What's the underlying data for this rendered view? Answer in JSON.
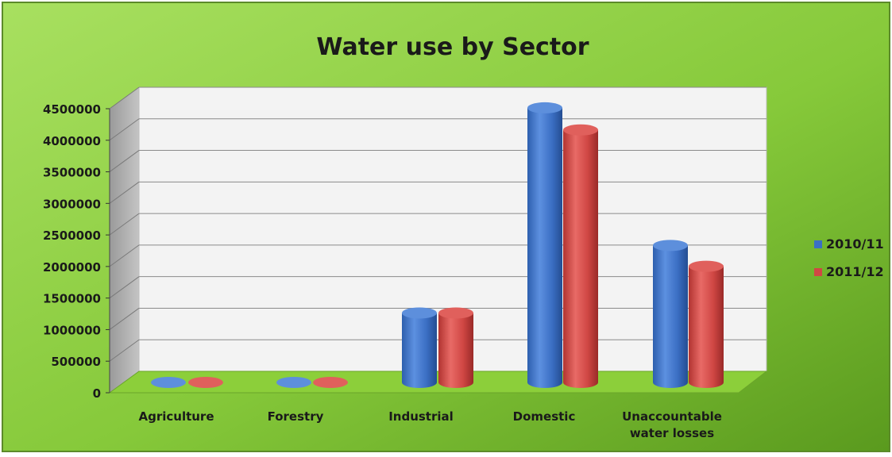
{
  "chart_data": {
    "type": "bar",
    "title": "Water use by Sector",
    "categories": [
      "Agriculture",
      "Forestry",
      "Industrial",
      "Domestic",
      "Unaccountable water losses"
    ],
    "category_lines": [
      [
        "Agriculture"
      ],
      [
        "Forestry"
      ],
      [
        "Industrial"
      ],
      [
        "Domestic"
      ],
      [
        "Unaccountable",
        "water losses"
      ]
    ],
    "series": [
      {
        "name": "2010/11",
        "values": [
          0,
          0,
          1100000,
          4350000,
          2170000
        ]
      },
      {
        "name": "2011/12",
        "values": [
          0,
          0,
          1100000,
          4000000,
          1840000
        ]
      }
    ],
    "y_ticks": [
      "0",
      "500000",
      "1000000",
      "1500000",
      "2000000",
      "2500000",
      "3000000",
      "3500000",
      "4000000",
      "4500000"
    ],
    "ylim": [
      0,
      4500000
    ],
    "grid": true,
    "legend_position": "right",
    "colors": {
      "series_1": "#3b6fc4",
      "series_2": "#d04744",
      "background_light": "#a8e060",
      "background_dark": "#5ea020",
      "wall": "#f3f3f3",
      "side_wall": "#a8a8a8",
      "floor": "#8ccf3a"
    }
  }
}
